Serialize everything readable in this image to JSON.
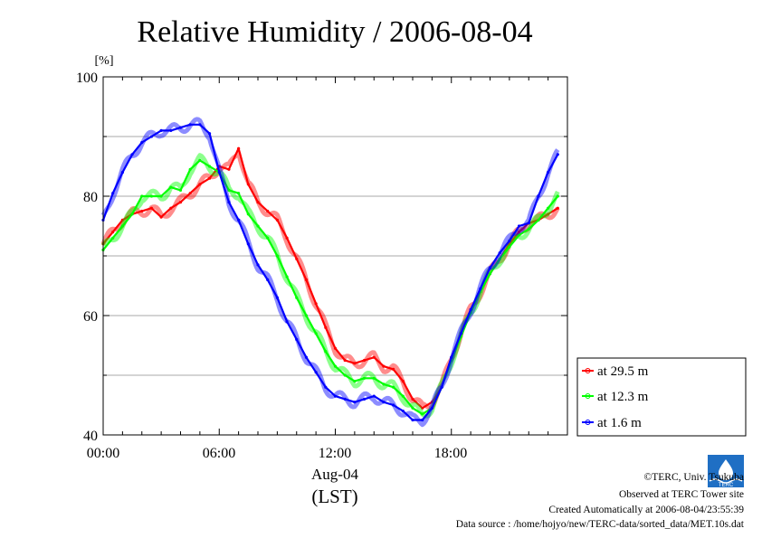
{
  "chart_data": {
    "type": "line",
    "title": "Relative Humidity / 2006-08-04",
    "ylabel": "[%]",
    "xlabel": "(LST)",
    "date_label": "Aug-04",
    "xlim": [
      "00:00",
      "24:00"
    ],
    "ylim": [
      40,
      100
    ],
    "x_ticks": [
      "00:00",
      "06:00",
      "12:00",
      "18:00"
    ],
    "y_ticks": [
      40,
      60,
      80,
      100
    ],
    "grid": true,
    "legend_position": "right",
    "x_hours": [
      0,
      0.5,
      1,
      1.5,
      2,
      2.5,
      3,
      3.5,
      4,
      4.5,
      5,
      5.5,
      6,
      6.5,
      7,
      7.5,
      8,
      8.5,
      9,
      9.5,
      10,
      10.5,
      11,
      11.5,
      12,
      12.5,
      13,
      13.5,
      14,
      14.5,
      15,
      15.5,
      16,
      16.5,
      17,
      17.5,
      18,
      18.5,
      19,
      19.5,
      20,
      20.5,
      21,
      21.5,
      22,
      22.5,
      23,
      23.5
    ],
    "series": [
      {
        "name": "at 29.5 m",
        "color": "#ff0000",
        "values": [
          72,
          74,
          76,
          77,
          77.5,
          78,
          76.5,
          78,
          79,
          80.5,
          82,
          83,
          85,
          84.5,
          88,
          82,
          79,
          77.5,
          76,
          73,
          69.5,
          66,
          62,
          58,
          54.5,
          52.5,
          52,
          52.5,
          53,
          51.5,
          51,
          49,
          46,
          44.5,
          45.5,
          48,
          53,
          57,
          61,
          64,
          67,
          69.5,
          72,
          74,
          75.5,
          76,
          77,
          78
        ]
      },
      {
        "name": "at 12.3 m",
        "color": "#00ff00",
        "values": [
          71,
          73,
          75,
          77,
          80,
          80,
          80,
          81.5,
          81,
          84.5,
          86,
          85,
          84,
          81,
          80.5,
          77,
          75,
          73,
          70,
          66.5,
          63,
          60,
          57,
          54,
          51.5,
          50,
          49,
          49.5,
          49.5,
          48.5,
          48,
          46.5,
          44.5,
          43.5,
          44.5,
          48,
          52.5,
          56.5,
          60.5,
          64,
          67,
          69.5,
          71.5,
          73.5,
          74.5,
          76,
          78,
          80
        ]
      },
      {
        "name": "at 1.6 m",
        "color": "#0000ff",
        "values": [
          76,
          80.5,
          84,
          87,
          89,
          90,
          91,
          91,
          91.5,
          92,
          92,
          90.5,
          84,
          79,
          76,
          72,
          68.5,
          66,
          63,
          59,
          56,
          53,
          50.5,
          48,
          46.5,
          46,
          45.5,
          46,
          46.5,
          45.5,
          45,
          44,
          42.5,
          42.5,
          44.5,
          48,
          53,
          57,
          61,
          64.5,
          68,
          70.5,
          72.5,
          75,
          75.5,
          80,
          84,
          87
        ]
      }
    ]
  },
  "footer": {
    "copyright": "©TERC, Univ. Tsukuba",
    "observed": "Observed at TERC Tower site",
    "created": "Created Automatically at 2006-08-04/23:55:39",
    "source": "Data source : /home/hojyo/new/TERC-data/sorted_data/MET.10s.dat"
  },
  "logo": {
    "text": "TERC",
    "color": "#1f6fc4"
  }
}
